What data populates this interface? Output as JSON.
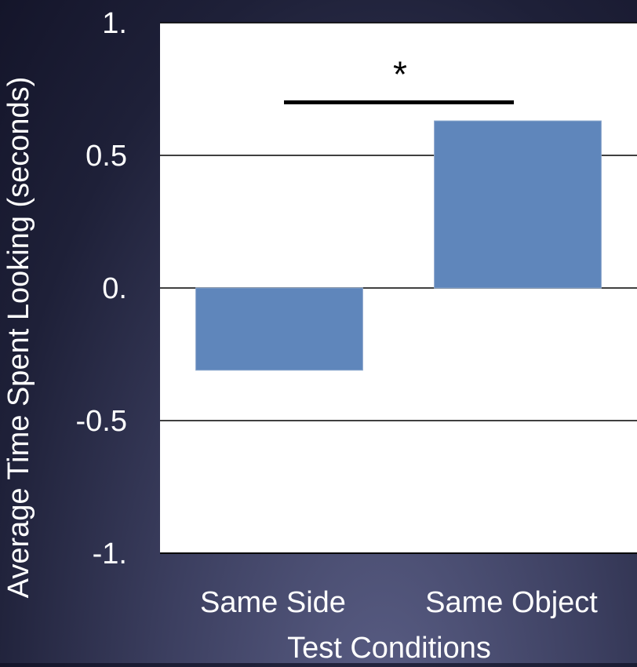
{
  "chart_data": {
    "type": "bar",
    "title": "",
    "xlabel": "Test Conditions",
    "ylabel": "Average Time Spent Looking (seconds)",
    "categories": [
      "Same Side",
      "Same Object"
    ],
    "values": [
      -0.31,
      0.63
    ],
    "ylim": [
      -1.0,
      1.0
    ],
    "yticks": [
      1.0,
      0.5,
      0.0,
      -0.5,
      -1.0
    ],
    "ytick_labels": [
      "1.",
      "0.5",
      "0.",
      "-0.5",
      "-1."
    ],
    "grid": true,
    "bar_color": "#5f86bb",
    "plot_background": "#ffffff",
    "text_color": "#ffffff",
    "annotation": {
      "text": "*",
      "between": [
        "Same Side",
        "Same Object"
      ],
      "value": 0.7
    }
  }
}
